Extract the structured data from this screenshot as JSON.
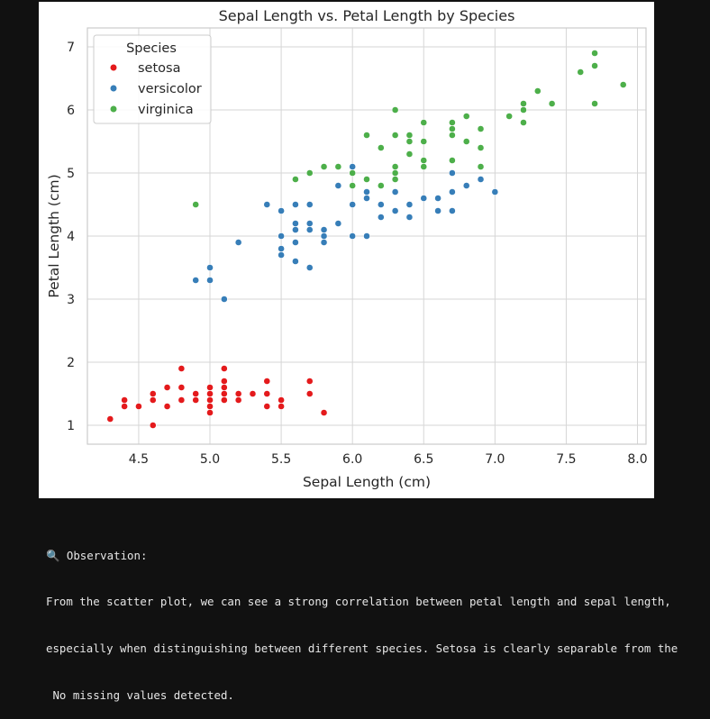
{
  "chart_data": {
    "type": "scatter",
    "title": "Sepal Length vs. Petal Length by Species",
    "xlabel": "Sepal Length (cm)",
    "ylabel": "Petal Length (cm)",
    "xlim": [
      4.14,
      8.06
    ],
    "ylim": [
      0.7,
      7.3
    ],
    "xticks": [
      4.5,
      5.0,
      5.5,
      6.0,
      6.5,
      7.0,
      7.5,
      8.0
    ],
    "xtick_labels": [
      "4.5",
      "5.0",
      "5.5",
      "6.0",
      "6.5",
      "7.0",
      "7.5",
      "8.0"
    ],
    "yticks": [
      1,
      2,
      3,
      4,
      5,
      6,
      7
    ],
    "ytick_labels": [
      "1",
      "2",
      "3",
      "4",
      "5",
      "6",
      "7"
    ],
    "grid": true,
    "legend": {
      "title": "Species",
      "placement": "upper-left"
    },
    "series": [
      {
        "name": "setosa",
        "color": "#e41a1c",
        "x": [
          4.3,
          4.4,
          4.4,
          4.5,
          4.6,
          4.6,
          4.6,
          4.7,
          4.7,
          4.8,
          4.8,
          4.8,
          4.8,
          4.9,
          4.9,
          5.0,
          5.0,
          5.0,
          5.0,
          5.0,
          5.0,
          5.1,
          5.1,
          5.1,
          5.1,
          5.1,
          5.1,
          5.2,
          5.2,
          5.3,
          5.4,
          5.4,
          5.4,
          5.5,
          5.5,
          5.7,
          5.7,
          5.8
        ],
        "y": [
          1.1,
          1.3,
          1.4,
          1.3,
          1.0,
          1.4,
          1.5,
          1.3,
          1.6,
          1.4,
          1.6,
          1.9,
          1.4,
          1.4,
          1.5,
          1.2,
          1.3,
          1.4,
          1.5,
          1.6,
          1.6,
          1.4,
          1.5,
          1.6,
          1.7,
          1.9,
          1.4,
          1.4,
          1.5,
          1.5,
          1.3,
          1.5,
          1.7,
          1.3,
          1.4,
          1.5,
          1.7,
          1.2
        ]
      },
      {
        "name": "versicolor",
        "color": "#377eb8",
        "x": [
          4.9,
          5.0,
          5.0,
          5.1,
          5.2,
          5.4,
          5.5,
          5.5,
          5.5,
          5.5,
          5.6,
          5.6,
          5.6,
          5.6,
          5.6,
          5.7,
          5.7,
          5.7,
          5.7,
          5.8,
          5.8,
          5.8,
          5.9,
          5.9,
          6.0,
          6.0,
          6.0,
          6.0,
          6.1,
          6.1,
          6.1,
          6.2,
          6.2,
          6.3,
          6.3,
          6.3,
          6.4,
          6.4,
          6.5,
          6.6,
          6.6,
          6.7,
          6.7,
          6.7,
          6.8,
          6.9,
          7.0
        ],
        "y": [
          3.3,
          3.3,
          3.5,
          3.0,
          3.9,
          4.5,
          3.7,
          3.8,
          4.0,
          4.4,
          3.6,
          3.9,
          4.1,
          4.2,
          4.5,
          3.5,
          4.1,
          4.2,
          4.5,
          3.9,
          4.0,
          4.1,
          4.2,
          4.8,
          4.0,
          4.5,
          5.0,
          5.1,
          4.0,
          4.6,
          4.7,
          4.3,
          4.5,
          4.4,
          4.7,
          4.9,
          4.3,
          4.5,
          4.6,
          4.4,
          4.6,
          4.4,
          4.7,
          5.0,
          4.8,
          4.9,
          4.7
        ]
      },
      {
        "name": "virginica",
        "color": "#4daf4a",
        "x": [
          4.9,
          5.6,
          5.7,
          5.8,
          5.8,
          5.9,
          6.0,
          6.0,
          6.1,
          6.1,
          6.2,
          6.2,
          6.3,
          6.3,
          6.3,
          6.3,
          6.3,
          6.4,
          6.4,
          6.4,
          6.4,
          6.5,
          6.5,
          6.5,
          6.5,
          6.7,
          6.7,
          6.7,
          6.7,
          6.7,
          6.8,
          6.8,
          6.9,
          6.9,
          6.9,
          7.1,
          7.2,
          7.2,
          7.2,
          7.3,
          7.4,
          7.6,
          7.7,
          7.7,
          7.7,
          7.9
        ],
        "y": [
          4.5,
          4.9,
          5.0,
          5.1,
          5.1,
          5.1,
          4.8,
          5.0,
          4.9,
          5.6,
          4.8,
          5.4,
          4.9,
          5.0,
          5.1,
          5.6,
          6.0,
          5.3,
          5.5,
          5.6,
          5.6,
          5.1,
          5.2,
          5.5,
          5.8,
          5.2,
          5.6,
          5.7,
          5.8,
          5.7,
          5.5,
          5.9,
          5.1,
          5.4,
          5.7,
          5.9,
          5.8,
          6.0,
          6.1,
          6.3,
          6.1,
          6.6,
          6.1,
          6.7,
          6.9,
          6.4
        ]
      }
    ]
  },
  "output": {
    "observation_icon": "magnifier-icon",
    "line1": "🔍 Observation:",
    "line2": "From the scatter plot, we can see a strong correlation between petal length and sepal length,",
    "line3": "especially when distinguishing between different species. Setosa is clearly separable from the",
    "line4": " No missing values detected."
  }
}
